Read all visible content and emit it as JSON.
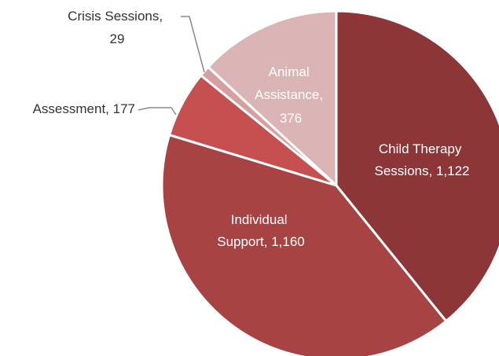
{
  "chart_data": {
    "type": "pie",
    "title": "",
    "slices": [
      {
        "name": "Child Therapy Sessions",
        "value": 1122,
        "display": "1,122",
        "color": "#8d3638",
        "label_lines": [
          "Child Therapy",
          "Sessions, 1,122"
        ],
        "label_position": "inside"
      },
      {
        "name": "Individual Support",
        "value": 1160,
        "display": "1,160",
        "color": "#a84344",
        "label_lines": [
          "Individual",
          "Support, 1,160"
        ],
        "label_position": "inside"
      },
      {
        "name": "Assessment",
        "value": 177,
        "display": "177",
        "color": "#c5504f",
        "label_lines": [
          "Assessment, 177"
        ],
        "label_position": "outside"
      },
      {
        "name": "Crisis Sessions",
        "value": 29,
        "display": "29",
        "color": "#d79f9f",
        "label_lines": [
          "Crisis Sessions,",
          "29"
        ],
        "label_position": "outside"
      },
      {
        "name": "Animal Assistance",
        "value": 376,
        "display": "376",
        "color": "#dbb5b5",
        "label_lines": [
          "Animal",
          "Assistance,",
          "376"
        ],
        "label_position": "inside"
      }
    ],
    "start_angle": "12 o'clock",
    "direction": "clockwise",
    "legend": "none",
    "data_labels": "category name and value"
  }
}
